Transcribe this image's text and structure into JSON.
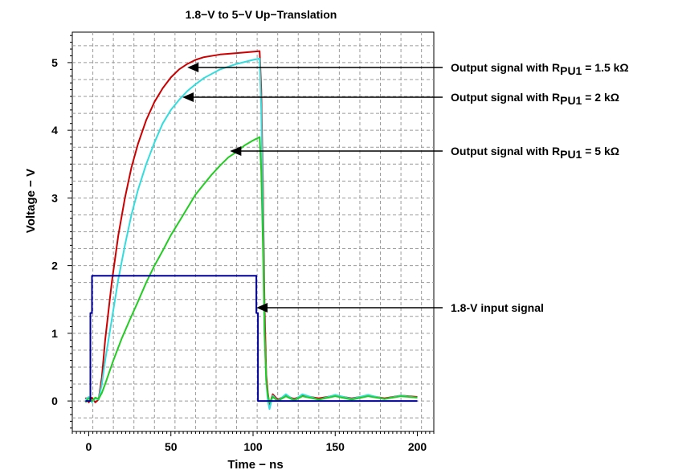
{
  "chart_data": {
    "type": "line",
    "title": "1.8−V to 5−V Up−Translation",
    "xlabel": "Time − ns",
    "ylabel": "Voltage − V",
    "xlim": [
      -10,
      210
    ],
    "ylim": [
      -0.45,
      5.45
    ],
    "xticks": [
      0,
      50,
      100,
      150,
      200
    ],
    "yticks": [
      0,
      1,
      2,
      3,
      4,
      5
    ],
    "grid": true,
    "series": [
      {
        "name": "Output signal with RPU1 = 1.5 kΩ",
        "color": "#cc0000",
        "points": [
          [
            -2,
            0.05
          ],
          [
            0,
            -0.02
          ],
          [
            2,
            0.05
          ],
          [
            4,
            -0.02
          ],
          [
            6,
            0.02
          ],
          [
            8,
            0.35
          ],
          [
            10,
            0.9
          ],
          [
            14,
            1.75
          ],
          [
            18,
            2.45
          ],
          [
            22,
            3.0
          ],
          [
            26,
            3.45
          ],
          [
            30,
            3.8
          ],
          [
            35,
            4.15
          ],
          [
            40,
            4.42
          ],
          [
            45,
            4.62
          ],
          [
            50,
            4.78
          ],
          [
            55,
            4.9
          ],
          [
            60,
            4.98
          ],
          [
            65,
            5.04
          ],
          [
            70,
            5.08
          ],
          [
            80,
            5.12
          ],
          [
            90,
            5.14
          ],
          [
            100,
            5.16
          ],
          [
            104,
            5.17
          ],
          [
            105,
            4.6
          ],
          [
            106,
            3.2
          ],
          [
            107,
            1.4
          ],
          [
            108,
            0.4
          ],
          [
            109,
            0.12
          ],
          [
            110,
            -0.06
          ],
          [
            112,
            0.1
          ],
          [
            115,
            0.02
          ],
          [
            120,
            0.08
          ],
          [
            125,
            0.03
          ],
          [
            130,
            0.08
          ],
          [
            140,
            0.04
          ],
          [
            150,
            0.08
          ],
          [
            160,
            0.04
          ],
          [
            170,
            0.08
          ],
          [
            180,
            0.04
          ],
          [
            190,
            0.08
          ],
          [
            200,
            0.06
          ]
        ]
      },
      {
        "name": "Output signal with RPU1 = 2 kΩ",
        "color": "#33dddd",
        "points": [
          [
            -2,
            0.02
          ],
          [
            0,
            0.06
          ],
          [
            2,
            -0.02
          ],
          [
            4,
            0.04
          ],
          [
            6,
            0.02
          ],
          [
            8,
            0.25
          ],
          [
            10,
            0.6
          ],
          [
            14,
            1.2
          ],
          [
            18,
            1.8
          ],
          [
            22,
            2.3
          ],
          [
            26,
            2.75
          ],
          [
            30,
            3.12
          ],
          [
            35,
            3.5
          ],
          [
            40,
            3.82
          ],
          [
            45,
            4.1
          ],
          [
            50,
            4.3
          ],
          [
            55,
            4.45
          ],
          [
            60,
            4.58
          ],
          [
            65,
            4.68
          ],
          [
            70,
            4.77
          ],
          [
            80,
            4.9
          ],
          [
            90,
            4.98
          ],
          [
            100,
            5.04
          ],
          [
            104,
            5.06
          ],
          [
            105,
            4.3
          ],
          [
            106,
            2.8
          ],
          [
            107,
            1.0
          ],
          [
            108,
            0.3
          ],
          [
            109,
            0.0
          ],
          [
            110,
            -0.12
          ],
          [
            112,
            0.08
          ],
          [
            115,
            0.0
          ],
          [
            120,
            0.1
          ],
          [
            125,
            0.01
          ],
          [
            130,
            0.1
          ],
          [
            140,
            0.02
          ],
          [
            150,
            0.09
          ],
          [
            160,
            0.03
          ],
          [
            170,
            0.09
          ],
          [
            180,
            0.03
          ],
          [
            190,
            0.08
          ],
          [
            200,
            0.05
          ]
        ]
      },
      {
        "name": "Output signal with RPU1 = 5 kΩ",
        "color": "#22cc22",
        "points": [
          [
            -2,
            -0.02
          ],
          [
            0,
            0.04
          ],
          [
            2,
            0.0
          ],
          [
            4,
            0.05
          ],
          [
            6,
            0.03
          ],
          [
            8,
            0.12
          ],
          [
            10,
            0.25
          ],
          [
            15,
            0.6
          ],
          [
            20,
            0.92
          ],
          [
            25,
            1.2
          ],
          [
            30,
            1.47
          ],
          [
            35,
            1.75
          ],
          [
            40,
            2.0
          ],
          [
            45,
            2.22
          ],
          [
            50,
            2.45
          ],
          [
            55,
            2.65
          ],
          [
            60,
            2.85
          ],
          [
            65,
            3.05
          ],
          [
            70,
            3.2
          ],
          [
            75,
            3.35
          ],
          [
            80,
            3.48
          ],
          [
            85,
            3.6
          ],
          [
            90,
            3.68
          ],
          [
            95,
            3.78
          ],
          [
            100,
            3.85
          ],
          [
            104,
            3.9
          ],
          [
            105,
            3.4
          ],
          [
            106,
            2.3
          ],
          [
            107,
            1.0
          ],
          [
            108,
            0.3
          ],
          [
            109,
            0.08
          ],
          [
            110,
            -0.02
          ],
          [
            112,
            0.06
          ],
          [
            115,
            0.0
          ],
          [
            120,
            0.07
          ],
          [
            125,
            0.01
          ],
          [
            130,
            0.07
          ],
          [
            140,
            0.02
          ],
          [
            150,
            0.07
          ],
          [
            160,
            0.02
          ],
          [
            170,
            0.07
          ],
          [
            180,
            0.03
          ],
          [
            190,
            0.07
          ],
          [
            200,
            0.05
          ]
        ]
      },
      {
        "name": "1.8-V input signal",
        "color": "#000099",
        "points": [
          [
            -2,
            0.0
          ],
          [
            1,
            0.0
          ],
          [
            1,
            1.3
          ],
          [
            2,
            1.3
          ],
          [
            2,
            1.85
          ],
          [
            102,
            1.85
          ],
          [
            102,
            1.3
          ],
          [
            103,
            1.3
          ],
          [
            103,
            0.0
          ],
          [
            200,
            0.0
          ]
        ]
      }
    ],
    "annotations": [
      {
        "pre": "Output signal with R",
        "sub": "PU1",
        "post": " = 1.5 kΩ",
        "arrow_to": [
          60,
          4.9
        ]
      },
      {
        "pre": "Output signal with R",
        "sub": "PU1",
        "post": " = 2 kΩ",
        "arrow_to": [
          57,
          4.45
        ]
      },
      {
        "pre": "Output signal with R",
        "sub": "PU1",
        "post": " = 5 kΩ",
        "arrow_to": [
          86,
          3.6
        ]
      },
      {
        "pre": "1.8-V input signal",
        "sub": "",
        "post": "",
        "arrow_to": [
          102,
          1.35
        ]
      }
    ]
  }
}
